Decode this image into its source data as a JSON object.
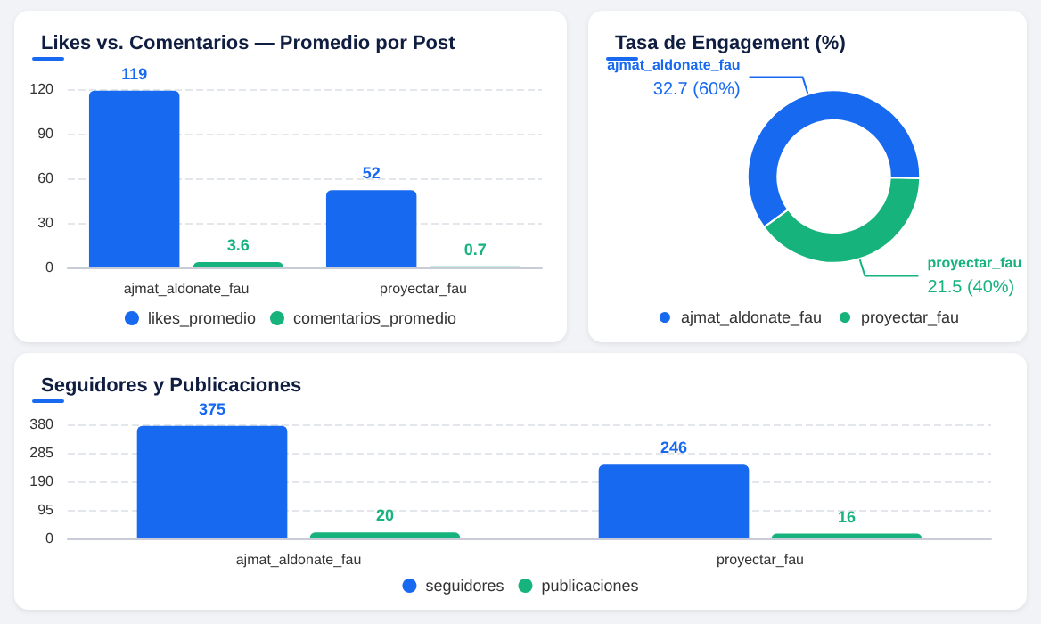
{
  "chart_data": [
    {
      "type": "bar",
      "title": "Likes vs. Comentarios — Promedio por Post",
      "categories": [
        "ajmat_aldonate_fau",
        "proyectar_fau"
      ],
      "series": [
        {
          "name": "likes_promedio",
          "color": "#1769f0",
          "values": [
            119,
            52
          ]
        },
        {
          "name": "comentarios_promedio",
          "color": "#16b37c",
          "values": [
            3.6,
            0.7
          ]
        }
      ],
      "ylim": [
        0,
        120
      ],
      "yticks": [
        0,
        30,
        60,
        90,
        120
      ],
      "grid": "y",
      "legend": "bottom",
      "data_labels": true
    },
    {
      "type": "donut",
      "title": "Tasa de Engagement (%)",
      "categories": [
        "ajmat_aldonate_fau",
        "proyectar_fau"
      ],
      "values": [
        32.7,
        21.5
      ],
      "colors": [
        "#1769f0",
        "#16b37c"
      ],
      "value_labels": [
        "32.7 (60%)",
        "21.5 (40%)"
      ],
      "legend": "bottom"
    },
    {
      "type": "bar",
      "title": "Seguidores y Publicaciones",
      "categories": [
        "ajmat_aldonate_fau",
        "proyectar_fau"
      ],
      "series": [
        {
          "name": "seguidores",
          "color": "#1769f0",
          "values": [
            375,
            246
          ]
        },
        {
          "name": "publicaciones",
          "color": "#16b37c",
          "values": [
            20,
            16
          ]
        }
      ],
      "ylim": [
        0,
        380
      ],
      "yticks": [
        0,
        95,
        190,
        285,
        380
      ],
      "grid": "y",
      "legend": "bottom",
      "data_labels": true
    }
  ]
}
